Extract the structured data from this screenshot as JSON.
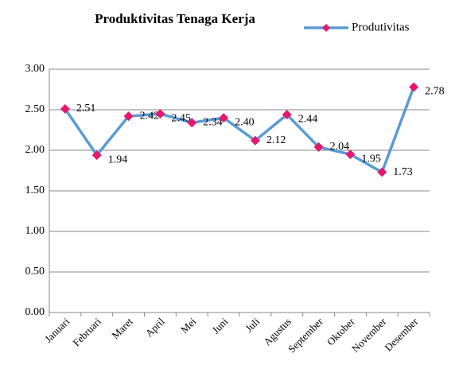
{
  "chart_data": {
    "type": "line",
    "title": "Produktivitas Tenaga Kerja",
    "categories": [
      "Januari",
      "Februari",
      "Maret",
      "April",
      "Mei",
      "Juni",
      "Juli",
      "Agustus",
      "September",
      "Oktober",
      "November",
      "Desember"
    ],
    "series": [
      {
        "name": "Produtivitas",
        "color": "#5b9bd5",
        "marker_color": "#e6186e",
        "values": [
          2.51,
          1.94,
          2.42,
          2.45,
          2.34,
          2.4,
          2.12,
          2.44,
          2.04,
          1.95,
          1.73,
          2.78
        ],
        "value_labels": [
          "2.51",
          "1.94",
          "2.42",
          "2.45",
          "2.34",
          "2.40",
          "2.12",
          "2.44",
          "2.04",
          "1.95",
          "1.73",
          "2.78"
        ]
      }
    ],
    "ylim": [
      0,
      3
    ],
    "yticks": [
      {
        "value": 0,
        "label": "0.00"
      },
      {
        "value": 0.5,
        "label": "0.50"
      },
      {
        "value": 1,
        "label": "1.00"
      },
      {
        "value": 1.5,
        "label": "1.50"
      },
      {
        "value": 2,
        "label": "2.00"
      },
      {
        "value": 2.5,
        "label": "2.50"
      },
      {
        "value": 3,
        "label": "3.00"
      }
    ],
    "grid": true,
    "legend": "top-right"
  }
}
